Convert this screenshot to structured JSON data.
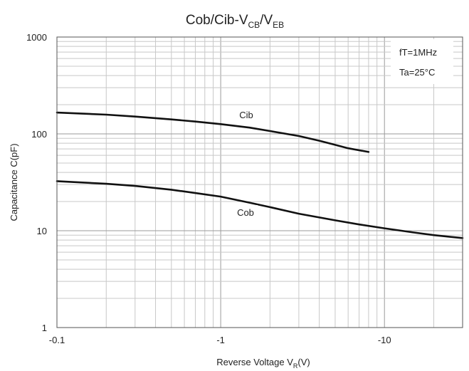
{
  "chart_data": {
    "type": "line",
    "title": {
      "main": "Cob/Cib-V",
      "sub1": "CB",
      "mid": "/V",
      "sub2": "EB"
    },
    "xlabel": {
      "main": "Reverse Voltage   V",
      "sub": "R",
      "tail": "(V)"
    },
    "ylabel": "Capacitance   C(pF)",
    "x_scale": "log",
    "y_scale": "log",
    "xlim": [
      0.1,
      30
    ],
    "ylim": [
      1,
      1000
    ],
    "x_ticks": [
      {
        "value": 0.1,
        "label": "-0.1"
      },
      {
        "value": 1,
        "label": "-1"
      },
      {
        "value": 10,
        "label": "-10"
      }
    ],
    "y_ticks": [
      {
        "value": 1,
        "label": "1"
      },
      {
        "value": 10,
        "label": "10"
      },
      {
        "value": 100,
        "label": "100"
      },
      {
        "value": 1000,
        "label": "1000"
      }
    ],
    "grid": true,
    "conditions": [
      "fT=1MHz",
      "Ta=25°C"
    ],
    "series": [
      {
        "name": "Cib",
        "x": [
          0.1,
          0.2,
          0.3,
          0.5,
          0.7,
          1.0,
          1.5,
          2.0,
          3.0,
          4.0,
          5.0,
          6.0,
          8.0
        ],
        "y": [
          166,
          158,
          151,
          141,
          134,
          126,
          116,
          107,
          95,
          85,
          77,
          71,
          65
        ]
      },
      {
        "name": "Cob",
        "x": [
          0.1,
          0.2,
          0.3,
          0.5,
          0.7,
          1.0,
          1.5,
          2.0,
          3.0,
          5.0,
          7.0,
          10.0,
          15.0,
          20.0,
          30.0
        ],
        "y": [
          32.5,
          30.5,
          29.0,
          26.5,
          24.5,
          22.5,
          19.5,
          17.5,
          15.0,
          12.8,
          11.6,
          10.6,
          9.6,
          9.0,
          8.4
        ]
      }
    ],
    "curve_labels": [
      "Cib",
      "Cob"
    ]
  }
}
